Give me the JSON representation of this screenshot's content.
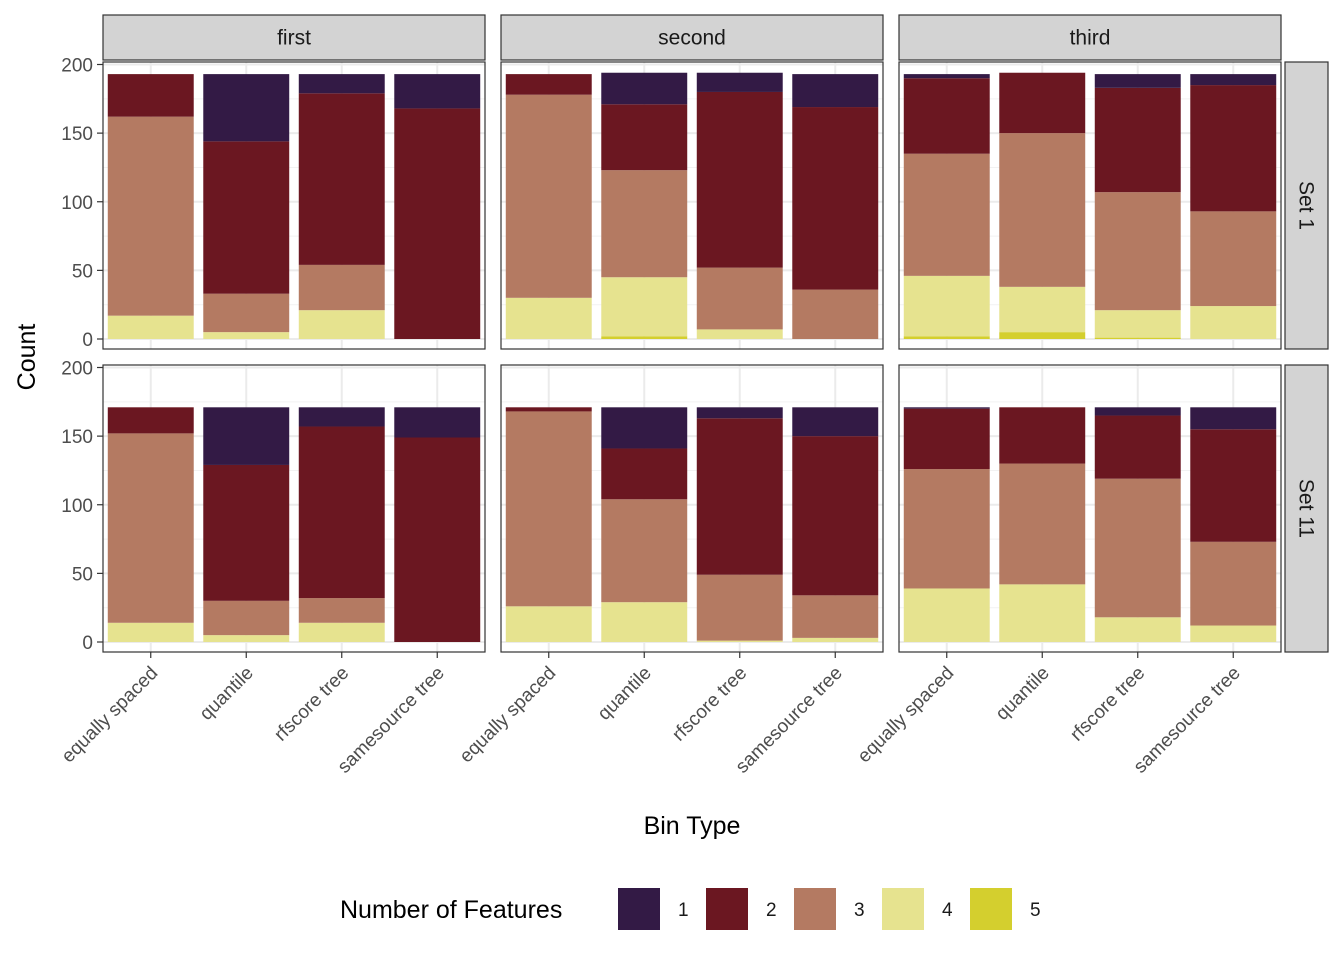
{
  "chart_data": {
    "type": "bar",
    "stacked": true,
    "facets": {
      "columns": [
        "first",
        "second",
        "third"
      ],
      "rows": [
        "Set 1",
        "Set 11"
      ]
    },
    "categories": [
      "equally spaced",
      "quantile",
      "rfscore tree",
      "samesource tree"
    ],
    "xlabel": "Bin Type",
    "ylabel": "Count",
    "ylim": [
      0,
      200
    ],
    "yticks": [
      0,
      50,
      100,
      150,
      200
    ],
    "grid": true,
    "legend": {
      "title": "Number of Features",
      "position": "bottom",
      "entries": [
        "1",
        "2",
        "3",
        "4",
        "5"
      ],
      "colors": [
        "#331a45",
        "#6b1721",
        "#b47a62",
        "#e6e38f",
        "#d4cf2e"
      ]
    },
    "panels": [
      {
        "column": "first",
        "row": "Set 1",
        "series": [
          {
            "name": "1",
            "values": [
              0,
              49,
              14,
              25
            ]
          },
          {
            "name": "2",
            "values": [
              31,
              111,
              125,
              168
            ]
          },
          {
            "name": "3",
            "values": [
              145,
              28,
              33,
              0
            ]
          },
          {
            "name": "4",
            "values": [
              17,
              5,
              21,
              0
            ]
          },
          {
            "name": "5",
            "values": [
              0,
              0,
              0,
              0
            ]
          }
        ]
      },
      {
        "column": "second",
        "row": "Set 1",
        "series": [
          {
            "name": "1",
            "values": [
              0,
              23,
              14,
              24
            ]
          },
          {
            "name": "2",
            "values": [
              15,
              48,
              128,
              133
            ]
          },
          {
            "name": "3",
            "values": [
              148,
              78,
              45,
              36
            ]
          },
          {
            "name": "4",
            "values": [
              30,
              43,
              7,
              0
            ]
          },
          {
            "name": "5",
            "values": [
              0,
              2,
              0,
              0
            ]
          }
        ]
      },
      {
        "column": "third",
        "row": "Set 1",
        "series": [
          {
            "name": "1",
            "values": [
              3,
              0,
              10,
              8
            ]
          },
          {
            "name": "2",
            "values": [
              55,
              44,
              76,
              92
            ]
          },
          {
            "name": "3",
            "values": [
              89,
              112,
              86,
              69
            ]
          },
          {
            "name": "4",
            "values": [
              44,
              33,
              20,
              24
            ]
          },
          {
            "name": "5",
            "values": [
              2,
              5,
              1,
              0
            ]
          }
        ]
      },
      {
        "column": "first",
        "row": "Set 11",
        "series": [
          {
            "name": "1",
            "values": [
              0,
              42,
              14,
              22
            ]
          },
          {
            "name": "2",
            "values": [
              19,
              99,
              125,
              149
            ]
          },
          {
            "name": "3",
            "values": [
              138,
              25,
              18,
              0
            ]
          },
          {
            "name": "4",
            "values": [
              14,
              5,
              14,
              0
            ]
          },
          {
            "name": "5",
            "values": [
              0,
              0,
              0,
              0
            ]
          }
        ]
      },
      {
        "column": "second",
        "row": "Set 11",
        "series": [
          {
            "name": "1",
            "values": [
              0,
              30,
              8,
              21
            ]
          },
          {
            "name": "2",
            "values": [
              3,
              37,
              114,
              116
            ]
          },
          {
            "name": "3",
            "values": [
              142,
              75,
              48,
              31
            ]
          },
          {
            "name": "4",
            "values": [
              26,
              29,
              1,
              3
            ]
          },
          {
            "name": "5",
            "values": [
              0,
              0,
              0,
              0
            ]
          }
        ]
      },
      {
        "column": "third",
        "row": "Set 11",
        "series": [
          {
            "name": "1",
            "values": [
              1,
              0,
              6,
              16
            ]
          },
          {
            "name": "2",
            "values": [
              44,
              41,
              46,
              82
            ]
          },
          {
            "name": "3",
            "values": [
              87,
              88,
              101,
              61
            ]
          },
          {
            "name": "4",
            "values": [
              39,
              42,
              18,
              12
            ]
          },
          {
            "name": "5",
            "values": [
              0,
              0,
              0,
              0
            ]
          }
        ]
      }
    ]
  }
}
